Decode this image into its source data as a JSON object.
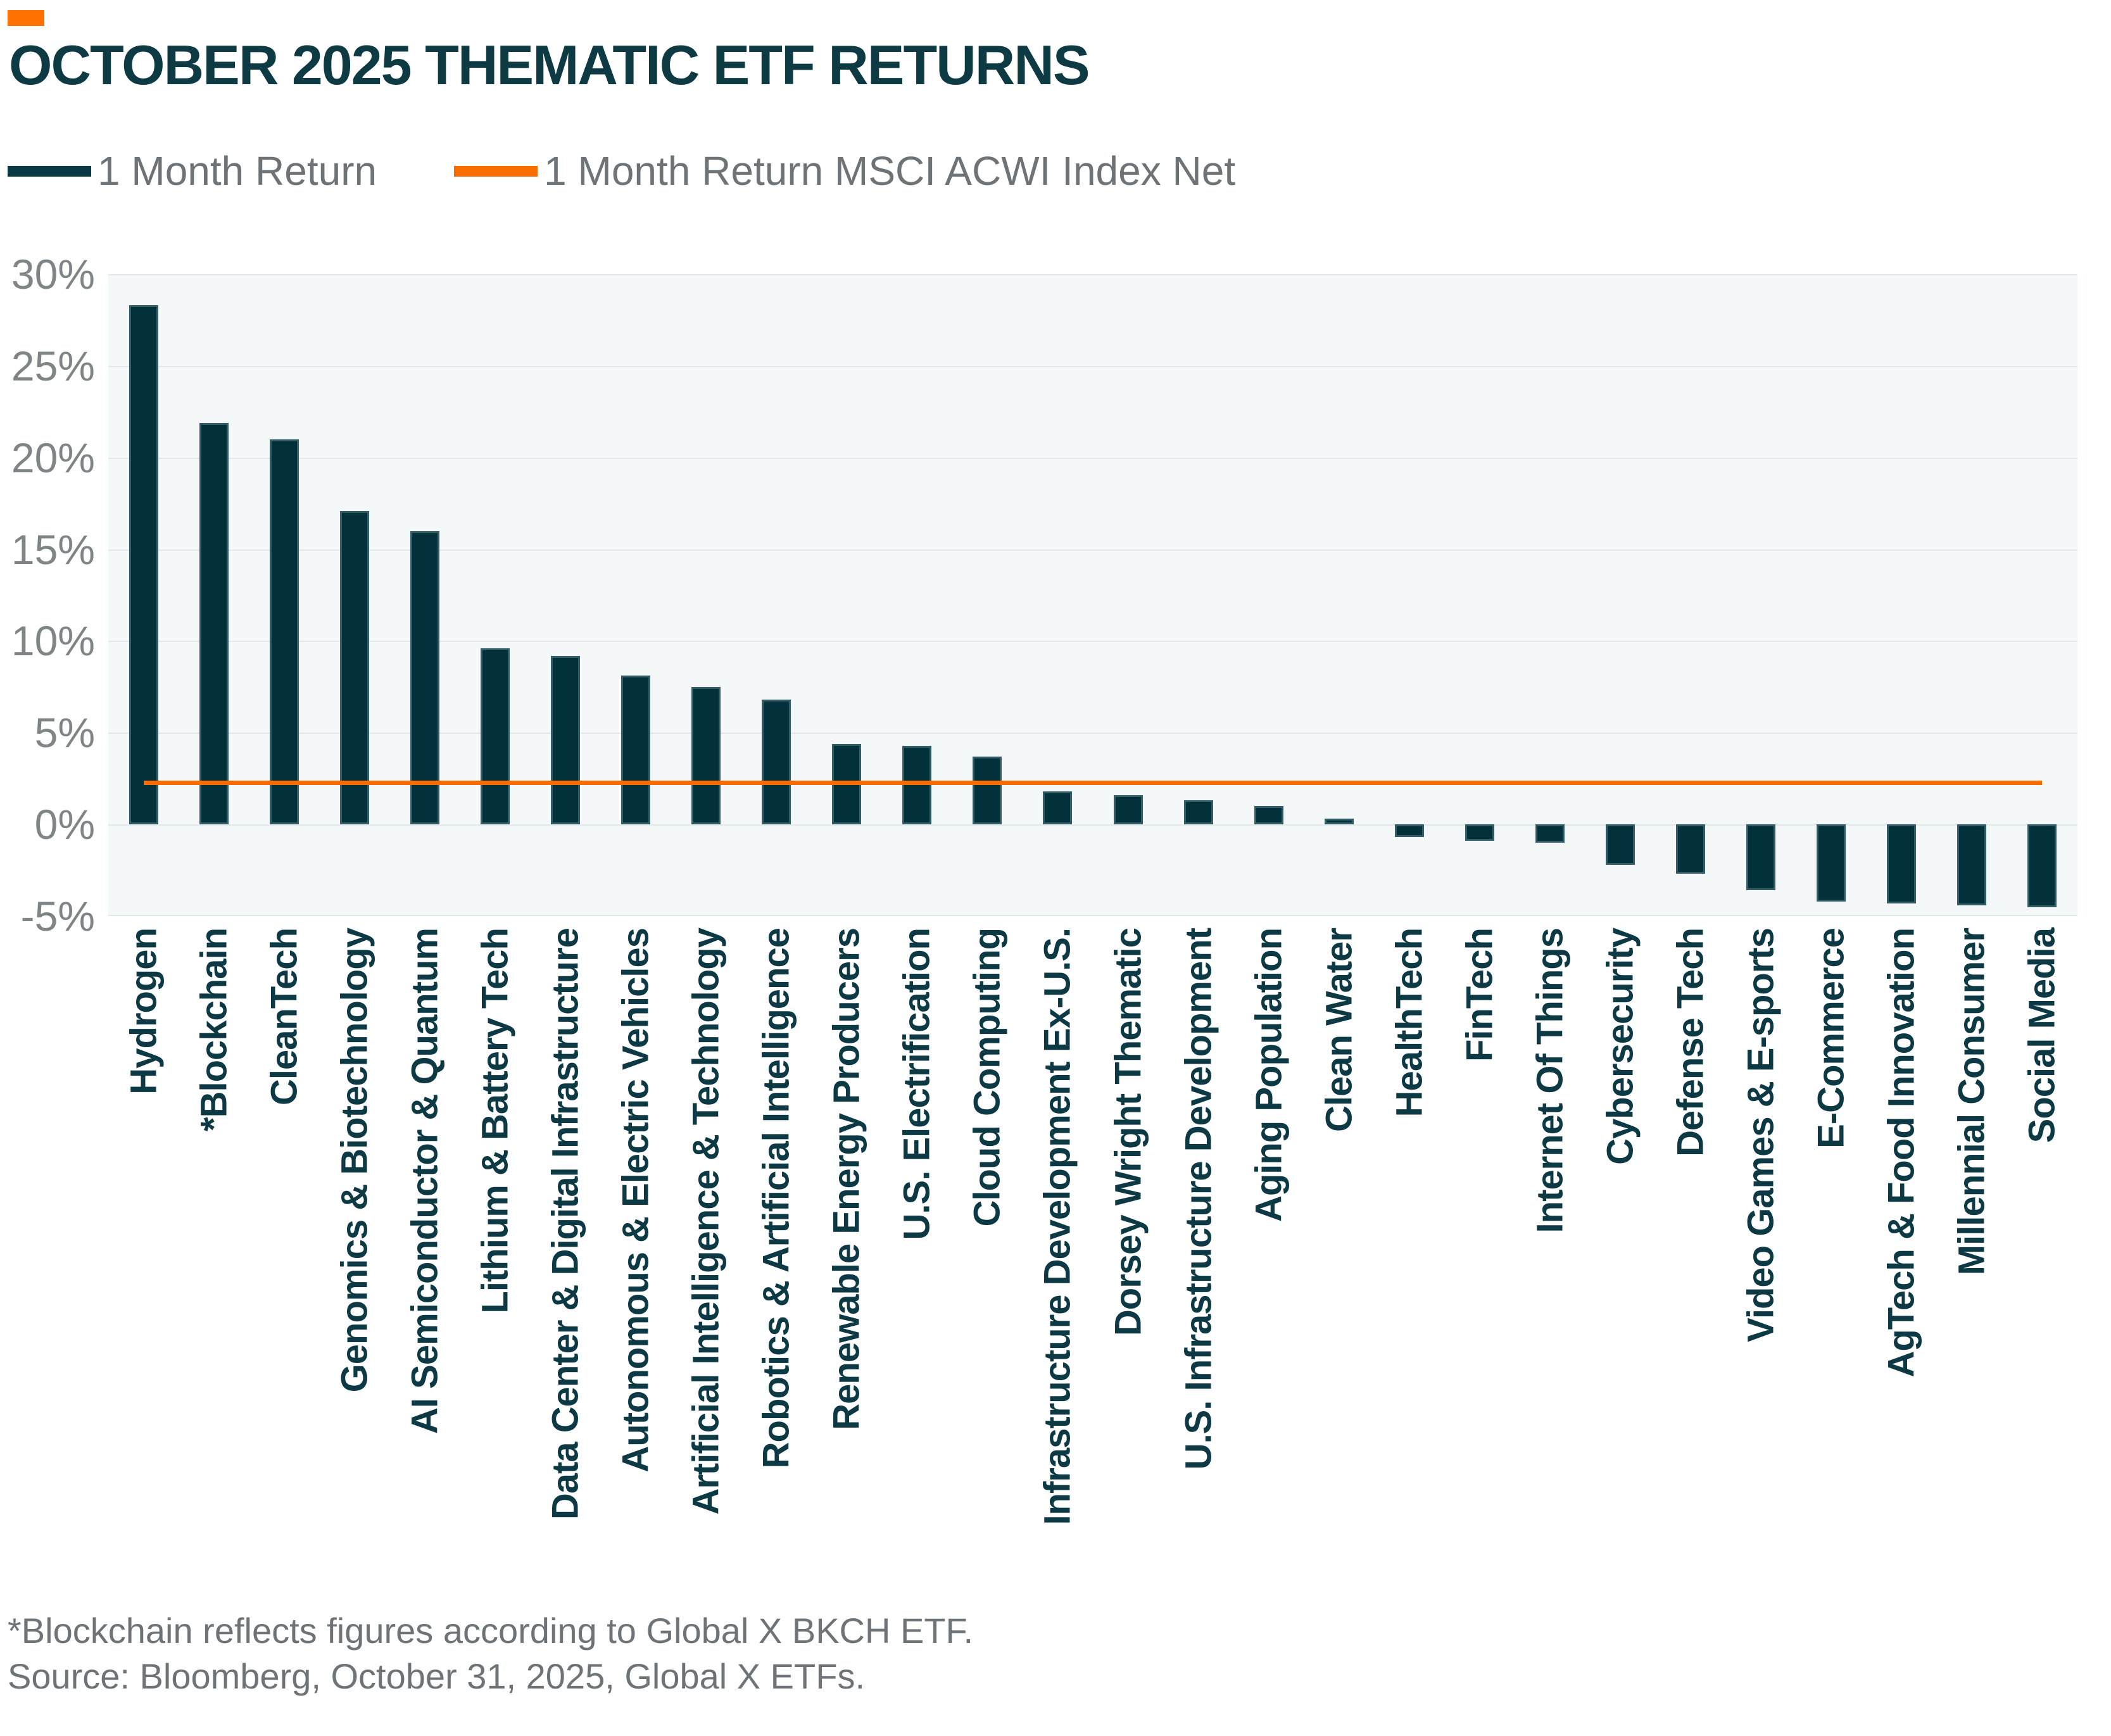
{
  "accent_color": "#FF7100",
  "header": {
    "title": "OCTOBER 2025 THEMATIC ETF RETURNS"
  },
  "legend": [
    {
      "label": "1 Month Return",
      "color": "#0B3943",
      "type": "bar"
    },
    {
      "label": "1 Month Return MSCI ACWI Index Net",
      "color": "#F96D00",
      "type": "line"
    }
  ],
  "chart_data": {
    "type": "bar",
    "title": "OCTOBER 2025 THEMATIC ETF RETURNS",
    "xlabel": "",
    "ylabel": "1 Month Return",
    "ylim": [
      -5,
      30
    ],
    "yticks": [
      "30%",
      "25%",
      "20%",
      "15%",
      "10%",
      "5%",
      "0%",
      "-5%"
    ],
    "grid": true,
    "legend_position": "top",
    "categories": [
      "Hydrogen",
      "*Blockchain",
      "CleanTech",
      "Genomics & Biotechnology",
      "AI Semiconductor & Quantum",
      "Lithium & Battery Tech",
      "Data Center & Digital Infrastructure",
      "Autonomous & Electric Vehicles",
      "Artificial Intelligence & Technology",
      "Robotics & Artificial Intelligence",
      "Renewable Energy Producers",
      "U.S. Electrification",
      "Cloud Computing",
      "Infrastructure Development Ex-U.S.",
      "Dorsey Wright Thematic",
      "U.S. Infrastructure Development",
      "Aging Population",
      "Clean Water",
      "HealthTech",
      "FinTech",
      "Internet Of Things",
      "Cybersecurity",
      "Defense Tech",
      "Video Games & E-sports",
      "E-Commerce",
      "AgTech & Food Innovation",
      "Millennial Consumer",
      "Social Media"
    ],
    "series": [
      {
        "name": "1 Month Return",
        "type": "bar",
        "color": "#03313B",
        "values": [
          28.3,
          21.9,
          21.0,
          17.1,
          16.0,
          9.6,
          9.2,
          8.1,
          7.5,
          6.8,
          4.4,
          4.3,
          3.7,
          1.8,
          1.6,
          1.3,
          1.0,
          0.3,
          -0.7,
          -0.9,
          -1.0,
          -2.2,
          -2.7,
          -3.6,
          -4.2,
          -4.3,
          -4.4,
          -4.5
        ]
      },
      {
        "name": "1 Month Return MSCI ACWI Index Net",
        "type": "line",
        "color": "#F96D00",
        "value": 2.3
      }
    ]
  },
  "footnotes": [
    "*Blockchain reflects figures according to Global X BKCH ETF.",
    "Source: Bloomberg, October 31, 2025, Global X ETFs."
  ]
}
